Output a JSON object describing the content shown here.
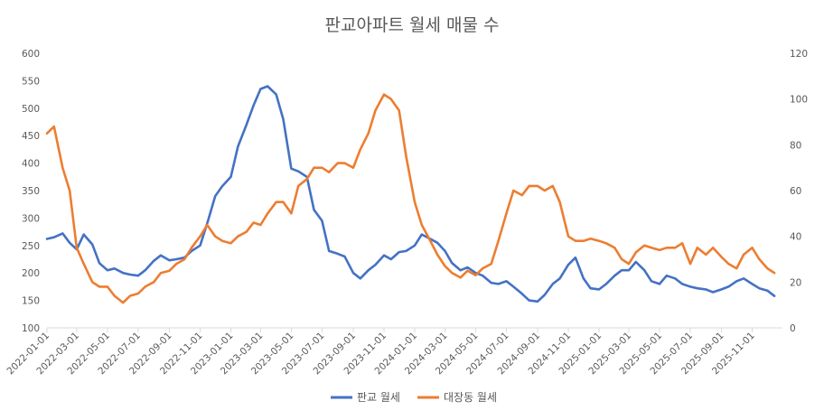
{
  "chart_data": {
    "type": "line",
    "title": "판교아파트 월세 매물 수",
    "xlabel": "",
    "ylabel": "",
    "y2label": "",
    "ylim": [
      100,
      600
    ],
    "y_ticks": [
      "100",
      "150",
      "200",
      "250",
      "300",
      "350",
      "400",
      "450",
      "500",
      "550",
      "600"
    ],
    "y2lim": [
      0,
      120
    ],
    "y2_ticks": [
      "0",
      "20",
      "40",
      "60",
      "80",
      "100",
      "120"
    ],
    "x_ticks": [
      "2022-01-01",
      "2022-03-01",
      "2022-05-01",
      "2022-07-01",
      "2022-09-01",
      "2022-11-01",
      "2023-01-01",
      "2023-03-01",
      "2023-05-01",
      "2023-07-01",
      "2023-09-01",
      "2023-11-01",
      "2024-01-01",
      "2024-03-01",
      "2024-05-01",
      "2024-07-01",
      "2024-09-01",
      "2024-11-01",
      "2025-01-01",
      "2025-03-01",
      "2025-05-01",
      "2025-07-01",
      "2025-09-01",
      "2025-11-01"
    ],
    "grid": false,
    "legend_position": "bottom",
    "series": [
      {
        "name": "판교 월세",
        "axis": "left",
        "color": "#4472C4",
        "x": [
          "2022-01-01",
          "2022-01-15",
          "2022-02-01",
          "2022-02-15",
          "2022-03-01",
          "2022-03-15",
          "2022-04-01",
          "2022-04-15",
          "2022-05-01",
          "2022-05-15",
          "2022-06-01",
          "2022-06-15",
          "2022-07-01",
          "2022-07-15",
          "2022-08-01",
          "2022-08-15",
          "2022-09-01",
          "2022-09-15",
          "2022-10-01",
          "2022-10-15",
          "2022-11-01",
          "2022-11-15",
          "2022-12-01",
          "2022-12-15",
          "2023-01-01",
          "2023-01-15",
          "2023-02-01",
          "2023-02-15",
          "2023-03-01",
          "2023-03-15",
          "2023-04-01",
          "2023-04-15",
          "2023-05-01",
          "2023-05-15",
          "2023-06-01",
          "2023-06-15",
          "2023-07-01",
          "2023-07-15",
          "2023-08-01",
          "2023-08-15",
          "2023-09-01",
          "2023-09-15",
          "2023-10-01",
          "2023-10-15",
          "2023-11-01",
          "2023-11-15",
          "2023-12-01",
          "2023-12-15",
          "2024-01-01",
          "2024-01-15",
          "2024-02-01",
          "2024-02-15",
          "2024-03-01",
          "2024-03-15",
          "2024-04-01",
          "2024-04-15",
          "2024-05-01",
          "2024-05-15",
          "2024-06-01",
          "2024-06-15",
          "2024-07-01",
          "2024-07-15",
          "2024-08-01",
          "2024-08-15",
          "2024-09-01",
          "2024-09-15",
          "2024-10-01",
          "2024-10-15",
          "2024-11-01",
          "2024-11-15",
          "2024-12-01",
          "2024-12-15",
          "2025-01-01",
          "2025-01-15",
          "2025-02-01",
          "2025-02-15",
          "2025-03-01",
          "2025-03-15",
          "2025-04-01",
          "2025-04-15",
          "2025-05-01",
          "2025-05-15",
          "2025-06-01",
          "2025-06-15",
          "2025-07-01",
          "2025-07-15",
          "2025-08-01",
          "2025-08-15",
          "2025-09-01",
          "2025-09-15",
          "2025-10-01",
          "2025-10-15",
          "2025-11-01",
          "2025-11-15",
          "2025-12-01",
          "2025-12-15"
        ],
        "values": [
          262,
          265,
          272,
          255,
          243,
          270,
          252,
          218,
          205,
          208,
          200,
          197,
          195,
          205,
          222,
          232,
          223,
          225,
          228,
          240,
          250,
          290,
          340,
          358,
          375,
          430,
          470,
          505,
          535,
          540,
          525,
          480,
          390,
          385,
          375,
          315,
          295,
          240,
          235,
          230,
          200,
          190,
          205,
          215,
          232,
          225,
          238,
          240,
          250,
          270,
          262,
          255,
          240,
          218,
          205,
          210,
          200,
          195,
          182,
          180,
          185,
          175,
          162,
          150,
          148,
          160,
          180,
          190,
          215,
          228,
          190,
          172,
          170,
          180,
          195,
          205,
          205,
          220,
          205,
          185,
          180,
          195,
          190,
          180,
          175,
          172,
          170,
          165,
          170,
          175,
          185,
          190,
          180,
          172,
          168,
          158
        ]
      },
      {
        "name": "대장동 월세",
        "axis": "right",
        "color": "#ED7D31",
        "x": [
          "2022-01-01",
          "2022-01-15",
          "2022-02-01",
          "2022-02-15",
          "2022-03-01",
          "2022-03-15",
          "2022-04-01",
          "2022-04-15",
          "2022-05-01",
          "2022-05-15",
          "2022-06-01",
          "2022-06-15",
          "2022-07-01",
          "2022-07-15",
          "2022-08-01",
          "2022-08-15",
          "2022-09-01",
          "2022-09-15",
          "2022-10-01",
          "2022-10-15",
          "2022-11-01",
          "2022-11-15",
          "2022-12-01",
          "2022-12-15",
          "2023-01-01",
          "2023-01-15",
          "2023-02-01",
          "2023-02-15",
          "2023-03-01",
          "2023-03-15",
          "2023-04-01",
          "2023-04-15",
          "2023-05-01",
          "2023-05-15",
          "2023-06-01",
          "2023-06-15",
          "2023-07-01",
          "2023-07-15",
          "2023-08-01",
          "2023-08-15",
          "2023-09-01",
          "2023-09-15",
          "2023-10-01",
          "2023-10-15",
          "2023-11-01",
          "2023-11-15",
          "2023-12-01",
          "2023-12-15",
          "2024-01-01",
          "2024-01-15",
          "2024-02-01",
          "2024-02-15",
          "2024-03-01",
          "2024-03-15",
          "2024-04-01",
          "2024-04-15",
          "2024-05-01",
          "2024-05-15",
          "2024-06-01",
          "2024-06-15",
          "2024-07-01",
          "2024-07-15",
          "2024-08-01",
          "2024-08-15",
          "2024-09-01",
          "2024-09-15",
          "2024-10-01",
          "2024-10-15",
          "2024-11-01",
          "2024-11-15",
          "2024-12-01",
          "2024-12-15",
          "2025-01-01",
          "2025-01-15",
          "2025-02-01",
          "2025-02-15",
          "2025-03-01",
          "2025-03-15",
          "2025-04-01",
          "2025-04-15",
          "2025-05-01",
          "2025-05-15",
          "2025-06-01",
          "2025-06-15",
          "2025-07-01",
          "2025-07-15",
          "2025-08-01",
          "2025-08-15",
          "2025-09-01",
          "2025-09-15",
          "2025-10-01",
          "2025-10-15",
          "2025-11-01",
          "2025-11-15",
          "2025-12-01",
          "2025-12-15"
        ],
        "values": [
          85,
          88,
          70,
          60,
          35,
          28,
          20,
          18,
          18,
          14,
          11,
          14,
          15,
          18,
          20,
          24,
          25,
          28,
          30,
          35,
          40,
          45,
          40,
          38,
          37,
          40,
          42,
          46,
          45,
          50,
          55,
          55,
          50,
          62,
          65,
          70,
          70,
          68,
          72,
          72,
          70,
          78,
          85,
          95,
          102,
          100,
          95,
          75,
          55,
          45,
          38,
          32,
          27,
          24,
          22,
          25,
          23,
          26,
          28,
          38,
          50,
          60,
          58,
          62,
          62,
          60,
          62,
          55,
          40,
          38,
          38,
          39,
          38,
          37,
          35,
          30,
          28,
          33,
          36,
          35,
          34,
          35,
          35,
          37,
          28,
          35,
          32,
          35,
          31,
          28,
          26,
          32,
          35,
          30,
          26,
          24
        ]
      }
    ]
  }
}
